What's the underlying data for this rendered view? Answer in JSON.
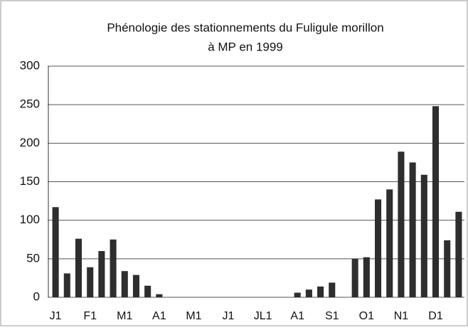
{
  "chart_data": {
    "type": "bar",
    "title": [
      "Phénologie des stationnements du Fuligule morillon",
      "à MP en 1999"
    ],
    "categories": [
      "J1",
      null,
      null,
      "F1",
      null,
      null,
      "M1",
      null,
      null,
      "A1",
      null,
      null,
      "M1",
      null,
      null,
      "J1",
      null,
      null,
      "JL1",
      null,
      null,
      "A1",
      null,
      null,
      "S1",
      null,
      null,
      "O1",
      null,
      null,
      "N1",
      null,
      null,
      "D1",
      null,
      null
    ],
    "values": [
      117,
      31,
      76,
      39,
      60,
      75,
      34,
      29,
      15,
      4,
      0,
      0,
      0,
      0,
      0,
      0,
      0,
      0,
      0,
      0,
      0,
      6,
      10,
      14,
      19,
      0,
      50,
      52,
      127,
      140,
      189,
      175,
      159,
      248,
      74,
      111
    ],
    "color": "#2e2e2e",
    "ylim": [
      0,
      300
    ],
    "yticks": [
      0,
      50,
      100,
      150,
      200,
      250,
      300
    ],
    "grid": true
  }
}
